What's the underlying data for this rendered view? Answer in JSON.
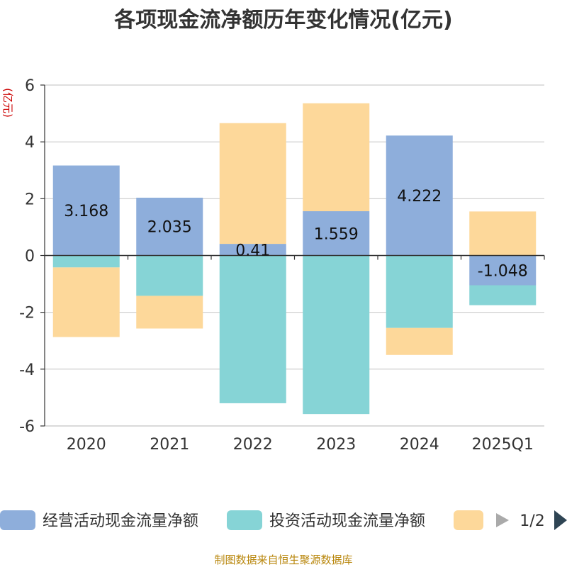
{
  "title": "各项现金流净额历年变化情况(亿元)",
  "unit_label": "(亿元)",
  "footer": "制图数据来自恒生聚源数据库",
  "legend": {
    "items": [
      "经营活动现金流量净额",
      "投资活动现金流量净额",
      ""
    ],
    "page": "1/2"
  },
  "colors": {
    "operating": "#8eaedb",
    "investing": "#86d4d6",
    "financing": "#fdd89a"
  },
  "chart_data": {
    "type": "bar",
    "stacked": true,
    "categories": [
      "2020",
      "2021",
      "2022",
      "2023",
      "2024",
      "2025Q1"
    ],
    "series": [
      {
        "name": "经营活动现金流量净额",
        "values": [
          3.168,
          2.035,
          0.41,
          1.559,
          4.222,
          -1.048
        ],
        "color": "#8eaedb"
      },
      {
        "name": "投资活动现金流量净额",
        "values": [
          -0.42,
          -1.42,
          -5.2,
          -5.58,
          -2.55,
          -0.7
        ],
        "color": "#86d4d6"
      },
      {
        "values": [
          -2.45,
          -1.15,
          4.25,
          3.8,
          -0.95,
          1.55
        ],
        "color": "#fdd89a"
      }
    ],
    "data_labels": [
      "3.168",
      "2.035",
      "0.41",
      "1.559",
      "4.222",
      "-1.048"
    ],
    "yticks": [
      "6",
      "4",
      "2",
      "0",
      "-2",
      "-4",
      "-6"
    ],
    "ylim": [
      -6,
      6
    ],
    "grid": true,
    "legend_position": "bottom"
  }
}
